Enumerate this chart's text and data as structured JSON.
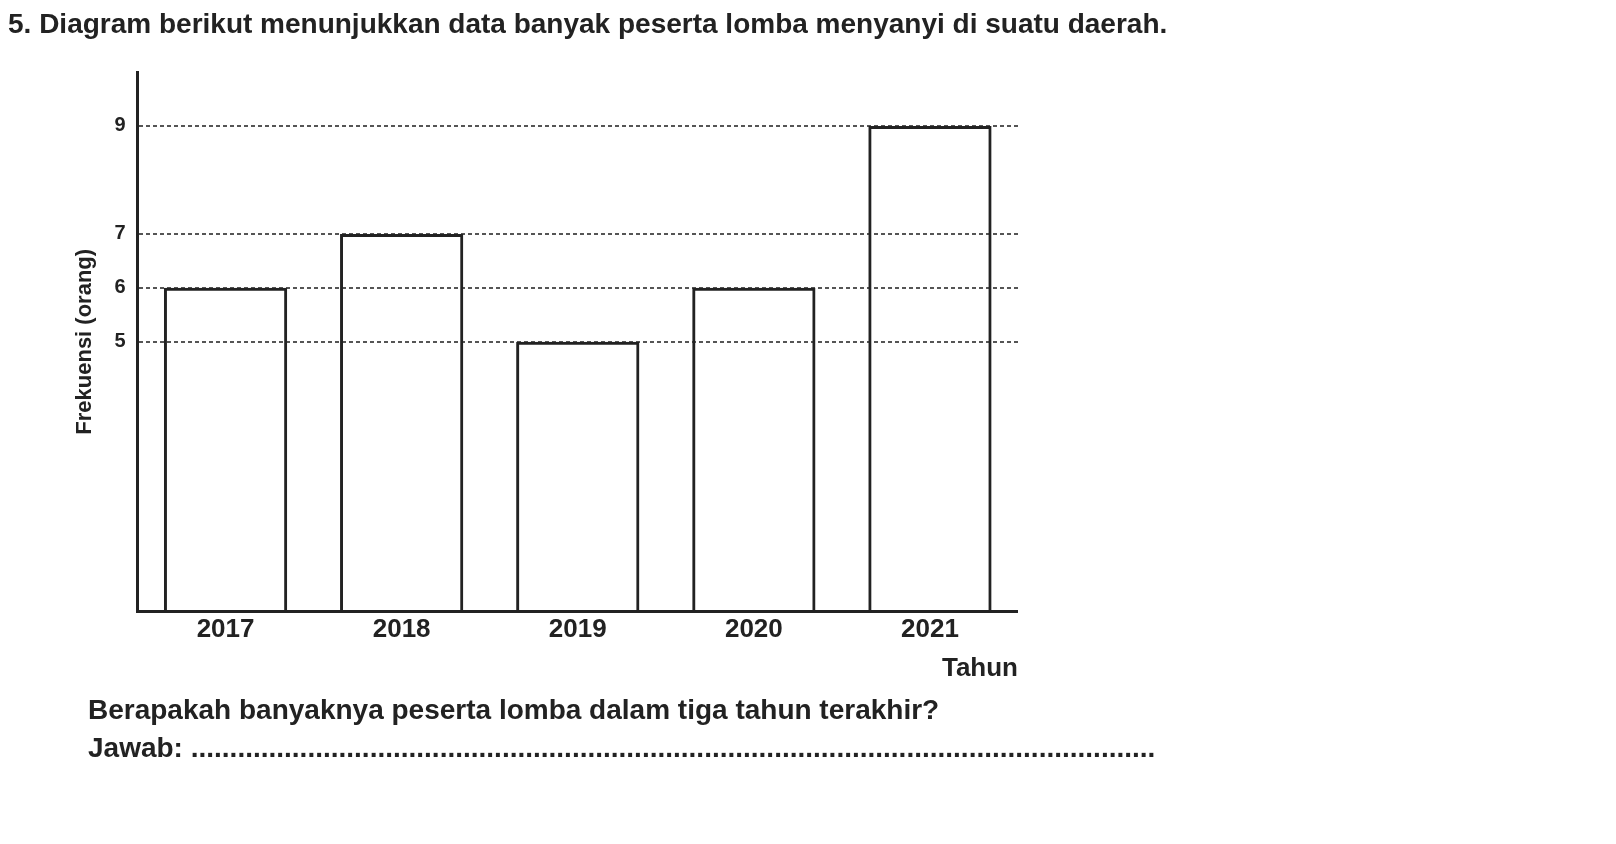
{
  "chart_data": {
    "type": "bar",
    "title": "5. Diagram berikut menunjukkan data banyak peserta lomba menyanyi di suatu daerah.",
    "xlabel": "Tahun",
    "ylabel": "Frekuensi (orang)",
    "categories": [
      "2017",
      "2018",
      "2019",
      "2020",
      "2021"
    ],
    "values": [
      6,
      7,
      5,
      6,
      9
    ],
    "color": "#222222",
    "ylim": [
      0,
      10
    ],
    "yticks": [
      5,
      6,
      7,
      9
    ],
    "grid": "y",
    "annotations": [
      "Berapakah banyaknya peserta lomba dalam tiga tahun terakhir?",
      "Jawab: ............................................................................................................................"
    ]
  }
}
